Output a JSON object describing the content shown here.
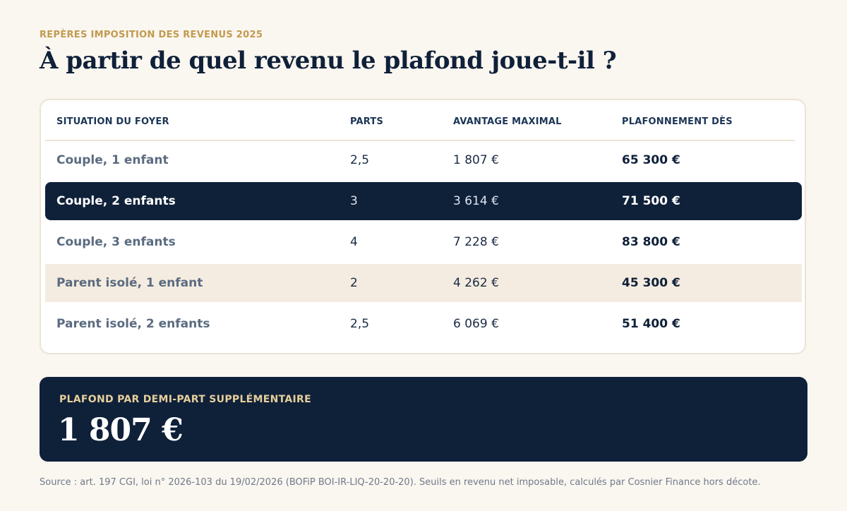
{
  "header": {
    "eyebrow": "REPÈRES IMPOSITION DES REVENUS 2025",
    "title": "À partir de quel revenu le plafond joue-t-il ?"
  },
  "table": {
    "columns": {
      "situation": "SITUATION DU FOYER",
      "parts": "PARTS",
      "avantage": "AVANTAGE MAXIMAL",
      "plafond": "PLAFONNEMENT DÈS"
    },
    "rows": [
      {
        "situation": "Couple, 1 enfant",
        "parts": "2,5",
        "avantage": "1 807 €",
        "plafond": "65 300 €"
      },
      {
        "situation": "Couple, 2 enfants",
        "parts": "3",
        "avantage": "3 614 €",
        "plafond": "71 500 €"
      },
      {
        "situation": "Couple, 3 enfants",
        "parts": "4",
        "avantage": "7 228 €",
        "plafond": "83 800 €"
      },
      {
        "situation": "Parent isolé, 1 enfant",
        "parts": "2",
        "avantage": "4 262 €",
        "plafond": "45 300 €"
      },
      {
        "situation": "Parent isolé, 2 enfants",
        "parts": "2,5",
        "avantage": "6 069 €",
        "plafond": "51 400 €"
      }
    ]
  },
  "summary": {
    "label": "PLAFOND PAR DEMI-PART SUPPLÉMENTAIRE",
    "value": "1 807 €"
  },
  "footer": {
    "source": "Source : art. 197 CGI, loi n° 2026-103 du 19/02/2026 (BOFiP BOI-IR-LIQ-20-20-20). Seuils en revenu net imposable, calculés par Cosnier Finance hors décote."
  },
  "colors": {
    "navy": "#0f2039",
    "gold": "#c29a4e",
    "cream": "#faf6f0",
    "highlight": "#f4ece0"
  }
}
